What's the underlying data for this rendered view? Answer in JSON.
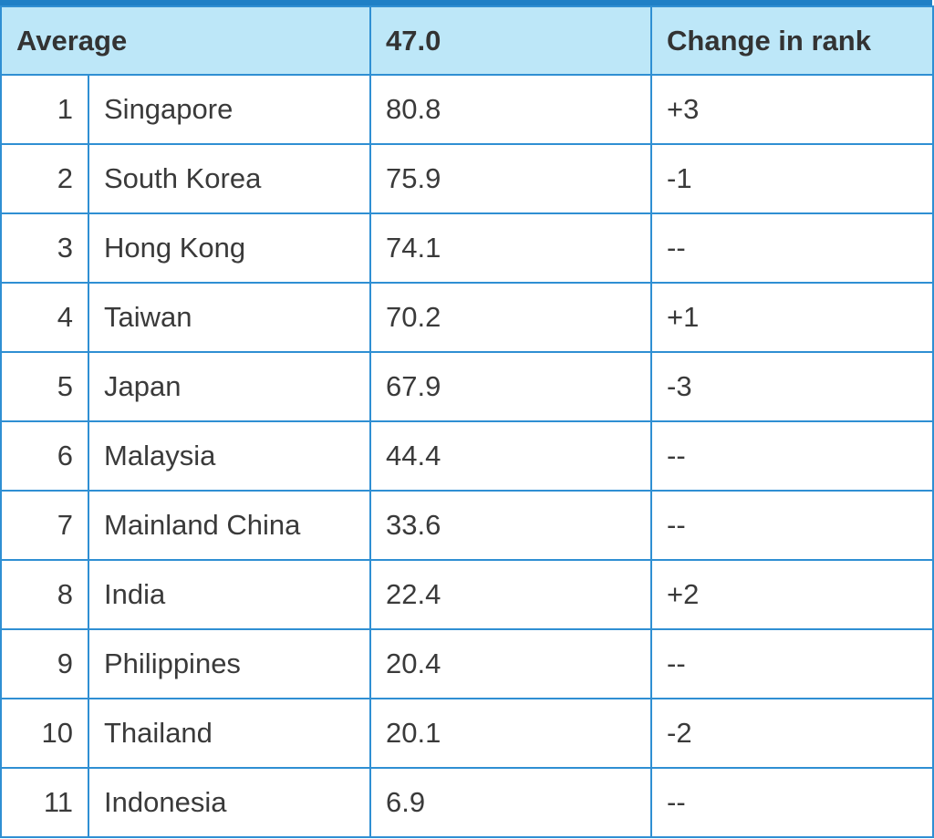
{
  "chart_data": {
    "type": "table",
    "header": {
      "label": "Average",
      "score": "47.0",
      "change": "Change in rank"
    },
    "rows": [
      {
        "rank": "1",
        "country": "Singapore",
        "score": "80.8",
        "change": "+3"
      },
      {
        "rank": "2",
        "country": "South Korea",
        "score": "75.9",
        "change": "-1"
      },
      {
        "rank": "3",
        "country": "Hong Kong",
        "score": "74.1",
        "change": "--"
      },
      {
        "rank": "4",
        "country": "Taiwan",
        "score": "70.2",
        "change": "+1"
      },
      {
        "rank": "5",
        "country": "Japan",
        "score": "67.9",
        "change": "-3"
      },
      {
        "rank": "6",
        "country": "Malaysia",
        "score": "44.4",
        "change": "--"
      },
      {
        "rank": "7",
        "country": "Mainland China",
        "score": "33.6",
        "change": "--"
      },
      {
        "rank": "8",
        "country": "India",
        "score": "22.4",
        "change": "+2"
      },
      {
        "rank": "9",
        "country": "Philippines",
        "score": "20.4",
        "change": "--"
      },
      {
        "rank": "10",
        "country": "Thailand",
        "score": "20.1",
        "change": "-2"
      },
      {
        "rank": "11",
        "country": "Indonesia",
        "score": "6.9",
        "change": "--"
      }
    ],
    "colors": {
      "header_bg": "#bde7f8",
      "border": "#2f8fd3",
      "top_rule": "#1f80c6",
      "text": "#333333"
    }
  }
}
